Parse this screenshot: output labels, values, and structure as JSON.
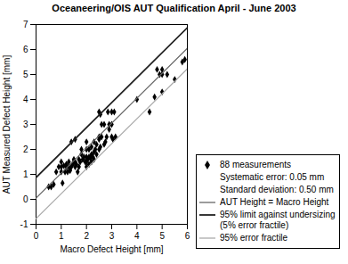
{
  "chart_data": {
    "type": "scatter",
    "title": "Oceaneering/OIS AUT Qualification April - June 2003",
    "xlabel": "Macro Defect Height [mm]",
    "ylabel": "AUT Measured Defect Height [mm]",
    "xlim": [
      0,
      6
    ],
    "ylim": [
      -1,
      7
    ],
    "xticks": [
      0,
      1,
      2,
      3,
      4,
      5,
      6
    ],
    "yticks": [
      -1,
      0,
      1,
      2,
      3,
      4,
      5,
      6,
      7
    ],
    "legend": "lower right",
    "annotations": [
      "Systematic error: 0.05 mm",
      "Standard deviation: 0.50 mm"
    ],
    "series": [
      {
        "name": "88 measurements",
        "type": "scatter",
        "color": "#000000",
        "marker": "diamond",
        "x": [
          0.5,
          0.7,
          0.8,
          0.9,
          1.0,
          1.0,
          1.0,
          1.05,
          1.1,
          1.15,
          1.2,
          1.2,
          1.25,
          1.3,
          1.3,
          1.35,
          1.4,
          1.4,
          1.45,
          1.5,
          1.5,
          1.55,
          1.55,
          1.6,
          1.65,
          1.7,
          1.7,
          1.75,
          1.8,
          1.8,
          1.85,
          1.9,
          1.95,
          2.0,
          2.0,
          2.0,
          2.0,
          2.0,
          2.05,
          2.1,
          2.1,
          2.1,
          2.15,
          2.2,
          2.2,
          2.2,
          2.25,
          2.3,
          2.3,
          2.3,
          2.35,
          2.4,
          2.4,
          2.5,
          2.5,
          2.5,
          2.5,
          2.55,
          2.6,
          2.6,
          2.7,
          2.7,
          2.75,
          2.8,
          2.85,
          2.9,
          2.9,
          3.0,
          3.0,
          3.0,
          3.05,
          3.1,
          3.15,
          4.0,
          4.5,
          4.7,
          4.8,
          4.9,
          5.0,
          5.0,
          5.0,
          5.2,
          5.5,
          5.8,
          5.9,
          0.6,
          1.55,
          2.55
        ],
        "values": [
          0.5,
          0.6,
          1.1,
          1.3,
          1.1,
          1.3,
          1.5,
          0.65,
          1.35,
          1.1,
          1.3,
          1.4,
          1.1,
          1.3,
          1.5,
          1.15,
          1.3,
          2.3,
          1.4,
          1.5,
          1.6,
          1.3,
          1.5,
          1.4,
          1.1,
          1.3,
          1.6,
          1.5,
          1.8,
          2.0,
          1.6,
          1.7,
          1.5,
          1.3,
          1.5,
          1.7,
          2.0,
          2.3,
          1.6,
          1.4,
          1.7,
          2.0,
          1.65,
          1.5,
          1.8,
          2.1,
          1.7,
          1.6,
          1.9,
          2.3,
          2.0,
          1.8,
          2.2,
          2.0,
          2.4,
          2.5,
          3.5,
          2.1,
          2.5,
          3.0,
          2.2,
          3.0,
          2.3,
          2.5,
          3.5,
          2.8,
          3.0,
          2.5,
          3.0,
          3.5,
          2.4,
          3.5,
          2.5,
          4.0,
          3.5,
          4.1,
          5.2,
          5.0,
          4.3,
          5.0,
          5.2,
          5.0,
          4.8,
          5.5,
          5.6,
          0.5,
          2.4,
          3.4
        ]
      },
      {
        "name": "AUT Height = Macro Height",
        "type": "line",
        "color": "#666666",
        "x": [
          0,
          6
        ],
        "values": [
          0.05,
          6.05
        ]
      },
      {
        "name": "95% limit against undersizing\n(5% error fractile)",
        "type": "line",
        "color": "#222222",
        "x": [
          0,
          6
        ],
        "values": [
          0.8725,
          6.8725
        ]
      },
      {
        "name": "95% error fractile",
        "type": "line",
        "color": "#aaaaaa",
        "x": [
          0,
          6
        ],
        "values": [
          -0.7725,
          5.2275
        ]
      }
    ]
  }
}
